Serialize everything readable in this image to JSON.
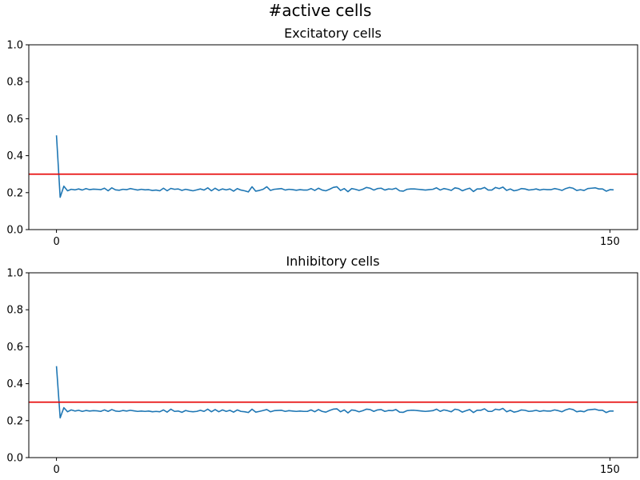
{
  "figure": {
    "title": "#active cells"
  },
  "chart_data": [
    {
      "type": "line",
      "title": "Excitatory cells",
      "xlabel": "",
      "ylabel": "",
      "xlim": [
        -7.5,
        157.5
      ],
      "ylim": [
        0.0,
        1.0
      ],
      "xticks": [
        0,
        150
      ],
      "xtick_labels": [
        "0",
        "150"
      ],
      "yticks": [
        0.0,
        0.2,
        0.4,
        0.6,
        0.8,
        1.0
      ],
      "ytick_labels": [
        "0.0",
        "0.2",
        "0.4",
        "0.6",
        "0.8",
        "1.0"
      ],
      "grid": false,
      "threshold": {
        "y": 0.3,
        "color": "#e60000"
      },
      "series_color": "#1f77b4",
      "x_start": 0,
      "x_step": 1,
      "y": [
        0.51,
        0.175,
        0.235,
        0.21,
        0.218,
        0.215,
        0.22,
        0.214,
        0.222,
        0.216,
        0.219,
        0.218,
        0.216,
        0.224,
        0.21,
        0.226,
        0.215,
        0.213,
        0.218,
        0.216,
        0.222,
        0.218,
        0.214,
        0.218,
        0.215,
        0.216,
        0.212,
        0.214,
        0.21,
        0.224,
        0.21,
        0.223,
        0.218,
        0.22,
        0.212,
        0.218,
        0.214,
        0.21,
        0.215,
        0.22,
        0.214,
        0.226,
        0.21,
        0.224,
        0.212,
        0.22,
        0.215,
        0.22,
        0.208,
        0.222,
        0.214,
        0.21,
        0.204,
        0.232,
        0.208,
        0.212,
        0.218,
        0.232,
        0.212,
        0.218,
        0.22,
        0.222,
        0.214,
        0.218,
        0.216,
        0.213,
        0.216,
        0.214,
        0.214,
        0.222,
        0.212,
        0.224,
        0.214,
        0.21,
        0.218,
        0.228,
        0.232,
        0.212,
        0.222,
        0.205,
        0.222,
        0.218,
        0.212,
        0.218,
        0.228,
        0.224,
        0.214,
        0.222,
        0.224,
        0.214,
        0.22,
        0.218,
        0.224,
        0.21,
        0.208,
        0.218,
        0.22,
        0.22,
        0.218,
        0.216,
        0.214,
        0.216,
        0.218,
        0.226,
        0.214,
        0.222,
        0.218,
        0.212,
        0.226,
        0.222,
        0.21,
        0.218,
        0.224,
        0.206,
        0.22,
        0.22,
        0.228,
        0.214,
        0.214,
        0.228,
        0.222,
        0.23,
        0.212,
        0.22,
        0.21,
        0.214,
        0.222,
        0.22,
        0.214,
        0.216,
        0.22,
        0.214,
        0.218,
        0.216,
        0.216,
        0.222,
        0.218,
        0.212,
        0.222,
        0.228,
        0.224,
        0.212,
        0.216,
        0.212,
        0.222,
        0.224,
        0.226,
        0.22,
        0.22,
        0.208,
        0.216,
        0.215
      ]
    },
    {
      "type": "line",
      "title": "Inhibitory cells",
      "xlabel": "",
      "ylabel": "",
      "xlim": [
        -7.5,
        157.5
      ],
      "ylim": [
        0.0,
        1.0
      ],
      "xticks": [
        0,
        150
      ],
      "xtick_labels": [
        "0",
        "150"
      ],
      "yticks": [
        0.0,
        0.2,
        0.4,
        0.6,
        0.8,
        1.0
      ],
      "ytick_labels": [
        "0.0",
        "0.2",
        "0.4",
        "0.6",
        "0.8",
        "1.0"
      ],
      "grid": false,
      "threshold": {
        "y": 0.3,
        "color": "#e60000"
      },
      "series_color": "#1f77b4",
      "x_start": 0,
      "x_step": 1,
      "y": [
        0.495,
        0.215,
        0.27,
        0.248,
        0.258,
        0.252,
        0.256,
        0.25,
        0.255,
        0.252,
        0.254,
        0.253,
        0.25,
        0.258,
        0.25,
        0.26,
        0.252,
        0.25,
        0.255,
        0.252,
        0.256,
        0.253,
        0.25,
        0.252,
        0.25,
        0.252,
        0.248,
        0.25,
        0.248,
        0.258,
        0.246,
        0.262,
        0.25,
        0.252,
        0.245,
        0.255,
        0.25,
        0.248,
        0.25,
        0.256,
        0.25,
        0.262,
        0.248,
        0.26,
        0.248,
        0.258,
        0.25,
        0.256,
        0.246,
        0.258,
        0.25,
        0.248,
        0.244,
        0.262,
        0.246,
        0.25,
        0.255,
        0.26,
        0.248,
        0.254,
        0.255,
        0.256,
        0.25,
        0.254,
        0.252,
        0.25,
        0.252,
        0.25,
        0.25,
        0.258,
        0.248,
        0.26,
        0.25,
        0.246,
        0.255,
        0.262,
        0.264,
        0.248,
        0.258,
        0.242,
        0.258,
        0.255,
        0.248,
        0.254,
        0.262,
        0.26,
        0.25,
        0.258,
        0.26,
        0.25,
        0.255,
        0.254,
        0.26,
        0.246,
        0.245,
        0.254,
        0.256,
        0.256,
        0.254,
        0.252,
        0.25,
        0.252,
        0.254,
        0.262,
        0.25,
        0.258,
        0.254,
        0.248,
        0.262,
        0.258,
        0.246,
        0.254,
        0.26,
        0.244,
        0.256,
        0.256,
        0.264,
        0.25,
        0.25,
        0.262,
        0.258,
        0.266,
        0.248,
        0.256,
        0.246,
        0.25,
        0.258,
        0.256,
        0.25,
        0.252,
        0.256,
        0.25,
        0.254,
        0.252,
        0.252,
        0.258,
        0.254,
        0.248,
        0.258,
        0.264,
        0.26,
        0.248,
        0.252,
        0.248,
        0.258,
        0.26,
        0.262,
        0.256,
        0.256,
        0.244,
        0.252,
        0.252
      ]
    }
  ]
}
